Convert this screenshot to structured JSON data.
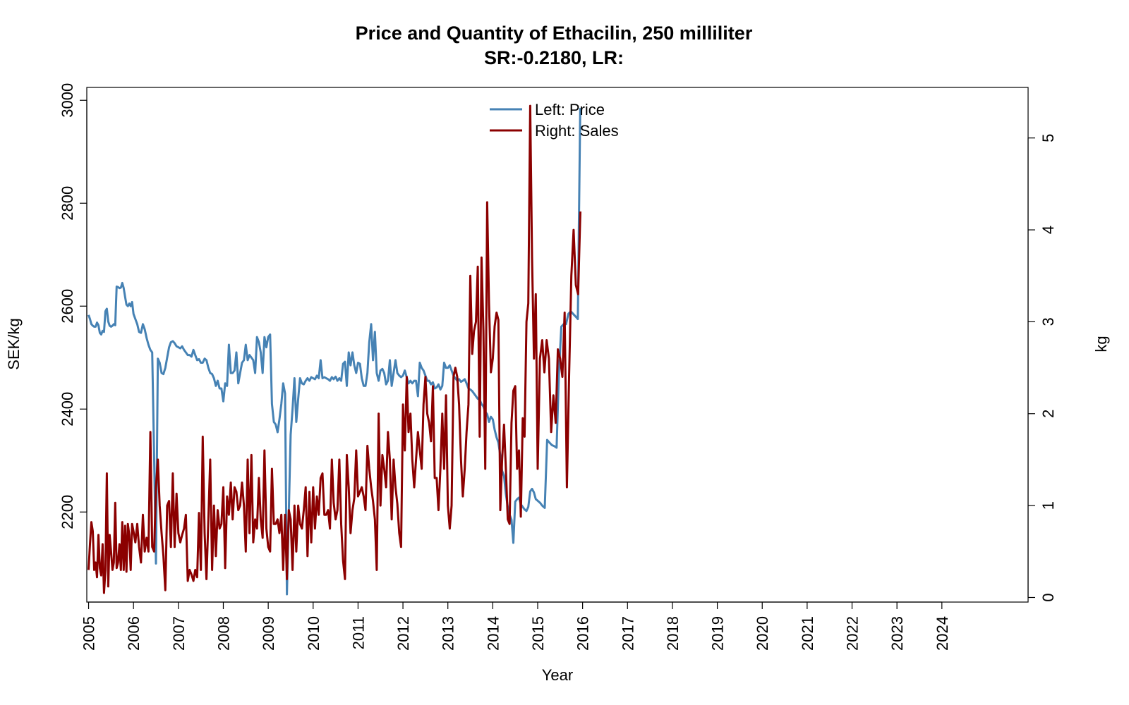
{
  "chart_data": {
    "type": "line",
    "title": "Price and Quantity of Ethacilin, 250 milliliter",
    "subtitle": "SR:-0.2180, LR:",
    "xlabel": "Year",
    "ylabel_left": "SEK/kg",
    "ylabel_right": "kg",
    "x_start_year": 2005,
    "x_ticks": [
      "2005",
      "2006",
      "2007",
      "2008",
      "2009",
      "2010",
      "2011",
      "2012",
      "2013",
      "2014",
      "2015",
      "2016",
      "2017",
      "2018",
      "2019",
      "2020",
      "2021",
      "2022",
      "2023",
      "2024"
    ],
    "y_left_ticks": [
      2200,
      2400,
      2600,
      2800,
      3000
    ],
    "y_left_range": [
      2025,
      3025
    ],
    "y_right_ticks": [
      0,
      1,
      2,
      3,
      4,
      5
    ],
    "y_right_range": [
      -0.05,
      5.55
    ],
    "x_range": [
      2004.96,
      2025.92
    ],
    "legend": {
      "position": "top-center",
      "entries": [
        "Left: Price",
        "Right: Sales"
      ]
    },
    "colors": {
      "price": "#4682B4",
      "sales": "#8B0000"
    },
    "series": [
      {
        "name": "Left: Price",
        "axis": "left",
        "annual_values": [
          [
            2583,
            2575,
            2565,
            2562,
            2560,
            2560,
            2568,
            2563,
            2548,
            2545,
            2552,
            2550,
            2590,
            2595,
            2570,
            2562,
            2560,
            2562,
            2565,
            2563,
            2638,
            2637,
            2635,
            2636,
            2645,
            2635,
            2618,
            2603,
            2600,
            2605,
            2600,
            2608
          ],
          [
            2585,
            2575,
            2565,
            2550,
            2548,
            2565,
            2555,
            2538,
            2525,
            2515,
            2510,
            2310,
            2100,
            2498,
            2490,
            2470,
            2468,
            2480,
            2500,
            2520,
            2530,
            2532,
            2528,
            2522
          ],
          [
            2520,
            2518,
            2522,
            2515,
            2510,
            2505,
            2505,
            2502,
            2515,
            2505,
            2495,
            2497,
            2490,
            2490,
            2498,
            2495,
            2480,
            2470,
            2468,
            2460,
            2445,
            2455,
            2440,
            2440
          ],
          [
            2415,
            2450,
            2445,
            2525,
            2470,
            2470,
            2475,
            2510,
            2450,
            2470,
            2490,
            2495,
            2525,
            2495,
            2505,
            2500,
            2495,
            2470,
            2540,
            2530,
            2510,
            2470,
            2540,
            2520
          ],
          [
            2540,
            2545,
            2410,
            2375,
            2370,
            2355,
            2380,
            2410,
            2450,
            2430,
            2040,
            2200,
            2350,
            2400,
            2460,
            2375,
            2420,
            2460,
            2450,
            2448,
            2455,
            2460,
            2455,
            2462
          ],
          [
            2460,
            2458,
            2465,
            2460,
            2495,
            2460,
            2462,
            2460,
            2458,
            2455,
            2462,
            2458,
            2463,
            2455,
            2460,
            2455,
            2488,
            2492,
            2445,
            2510,
            2485,
            2510,
            2485,
            2470
          ],
          [
            2490,
            2488,
            2460,
            2445,
            2445,
            2470,
            2530,
            2565,
            2495,
            2550,
            2470,
            2455,
            2475,
            2478,
            2470,
            2448,
            2455,
            2495,
            2445,
            2470,
            2495,
            2470,
            2465,
            2462
          ],
          [
            2465,
            2475,
            2462,
            2450,
            2455,
            2450,
            2455,
            2455,
            2425,
            2490,
            2480,
            2475,
            2465,
            2455,
            2455,
            2448,
            2452,
            2440,
            2442,
            2448,
            2438,
            2445,
            2490,
            2480
          ],
          [
            2480,
            2485,
            2475,
            2465,
            2460,
            2455,
            2458,
            2453,
            2455,
            2458,
            2450,
            2440,
            2438,
            2435,
            2430,
            2425,
            2420,
            2418,
            2410,
            2405,
            2395,
            2390,
            2375,
            2385
          ],
          [
            2380,
            2360,
            2345,
            2335,
            2310,
            2280,
            2270,
            2235,
            2210,
            2195,
            2185,
            2140,
            2220,
            2225,
            2228,
            2215,
            2210,
            2205,
            2202,
            2210,
            2240,
            2245,
            2238,
            2225
          ],
          [
            2222,
            2218,
            2212,
            2208,
            2340,
            2335,
            2330,
            2328,
            2325,
            2470,
            2560,
            2565,
            2565,
            2585,
            2590,
            2585,
            2580,
            2575,
            2985
          ]
        ]
      },
      {
        "name": "Right: Sales",
        "axis": "right",
        "annual_values": [
          [
            0.3,
            0.58,
            0.82,
            0.72,
            0.3,
            0.38,
            0.22,
            0.68,
            0.32,
            0.24,
            0.58,
            0.05,
            0.3,
            1.35,
            0.12,
            0.68,
            0.5,
            0.3,
            0.38,
            1.03,
            0.32,
            0.38,
            0.58,
            0.3,
            0.82,
            0.3,
            0.78,
            0.28,
            0.8,
            0.68,
            0.3,
            0.8
          ],
          [
            0.72,
            0.6,
            0.8,
            0.55,
            0.38,
            0.9,
            0.5,
            0.65,
            0.5,
            1.8,
            0.55,
            0.5,
            1.2,
            1.5,
            1.0,
            0.7,
            0.45,
            0.08,
            1.0,
            1.05,
            0.55,
            1.35,
            0.55,
            1.13
          ],
          [
            0.7,
            0.6,
            0.68,
            0.75,
            0.9,
            0.18,
            0.3,
            0.25,
            0.18,
            0.3,
            0.22,
            0.92,
            0.3,
            1.75,
            0.7,
            0.2,
            0.85,
            1.5,
            0.3,
            1.0,
            0.45,
            0.95,
            0.75,
            0.8
          ],
          [
            1.2,
            0.32,
            1.1,
            0.9,
            1.25,
            0.85,
            1.2,
            1.15,
            0.95,
            1.0,
            1.25,
            1.0,
            0.5,
            1.5,
            0.7,
            1.55,
            0.6,
            0.85,
            0.75,
            1.3,
            0.85,
            0.65,
            1.6,
            0.75
          ],
          [
            0.55,
            0.5,
            1.4,
            0.8,
            0.8,
            0.85,
            0.7,
            0.9,
            0.3,
            0.9,
            0.2,
            0.95,
            0.85,
            0.3,
            1.0,
            0.5,
            1.0,
            0.8,
            0.75,
            0.95,
            1.2,
            0.45,
            1.15,
            0.6
          ],
          [
            1.2,
            0.75,
            1.1,
            0.9,
            1.3,
            1.35,
            0.9,
            0.9,
            0.95,
            0.75,
            1.5,
            1.03,
            0.85,
            0.95,
            1.5,
            0.8,
            0.4,
            0.2,
            1.55,
            1.2,
            0.7,
            0.95,
            1.08,
            1.6
          ],
          [
            1.1,
            1.15,
            1.2,
            1.1,
            0.95,
            1.65,
            1.4,
            1.2,
            1.05,
            0.85,
            0.3,
            2.0,
            1.0,
            1.55,
            1.4,
            1.2,
            1.8,
            1.5,
            0.85,
            1.5,
            1.2,
            1.02,
            0.7,
            0.55
          ],
          [
            2.1,
            1.6,
            2.4,
            1.8,
            2.0,
            1.5,
            1.2,
            1.5,
            1.8,
            1.6,
            1.4,
            2.1,
            2.4,
            2.0,
            1.9,
            1.7,
            2.3,
            1.3,
            1.3,
            0.95,
            1.4,
            2.0,
            1.4,
            2.2
          ],
          [
            1.0,
            0.75,
            1.0,
            2.4,
            2.5,
            2.4,
            2.1,
            1.5,
            1.1,
            1.4,
            1.8,
            2.1,
            3.5,
            2.65,
            2.9,
            3.0,
            3.6,
            1.75,
            3.7,
            2.9,
            1.4,
            4.3,
            3.2,
            2.45
          ],
          [
            2.6,
            2.95,
            3.1,
            3.02,
            0.95,
            1.5,
            1.88,
            1.4,
            0.85,
            0.8,
            1.9,
            2.25,
            2.3,
            1.4,
            1.6,
            0.88,
            1.95,
            1.75,
            3.0,
            3.2,
            5.35,
            3.7,
            2.6,
            3.3
          ],
          [
            1.4,
            2.6,
            2.8,
            2.45,
            2.8,
            2.6,
            1.8,
            2.2,
            1.9,
            2.7,
            2.6,
            2.4,
            3.1,
            1.2,
            2.4,
            3.5,
            4.0,
            3.4,
            3.3,
            4.2
          ]
        ]
      }
    ]
  }
}
